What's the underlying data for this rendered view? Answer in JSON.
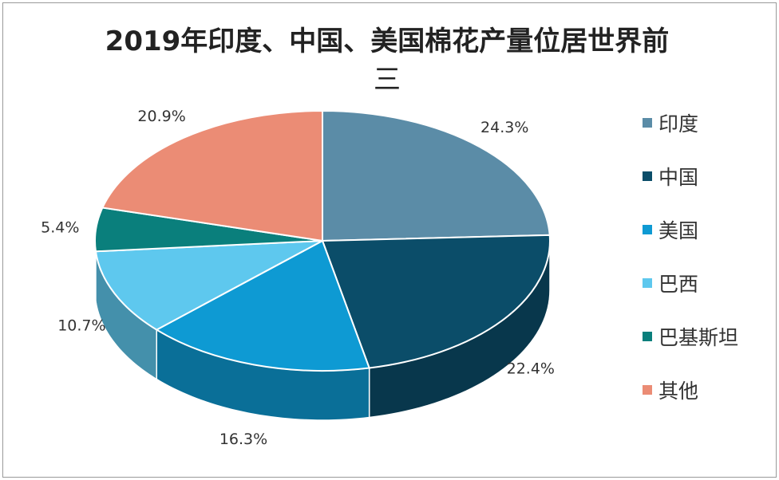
{
  "chart_data": {
    "type": "pie",
    "title_line1": "2019年印度、中国、美国棉花产量位居世界前",
    "title_line2": "三",
    "categories": [
      "印度",
      "中国",
      "美国",
      "巴西",
      "巴基斯坦",
      "其他"
    ],
    "values": [
      24.3,
      22.4,
      16.3,
      10.7,
      5.4,
      20.9
    ],
    "labels": [
      "24.3%",
      "22.4%",
      "16.3%",
      "10.7%",
      "5.4%",
      "20.9%"
    ],
    "colors": [
      "#5b8ca7",
      "#0b4d69",
      "#0e9ad3",
      "#5ec8ee",
      "#0a7f7c",
      "#eb8c75"
    ],
    "legend_position": "right"
  }
}
